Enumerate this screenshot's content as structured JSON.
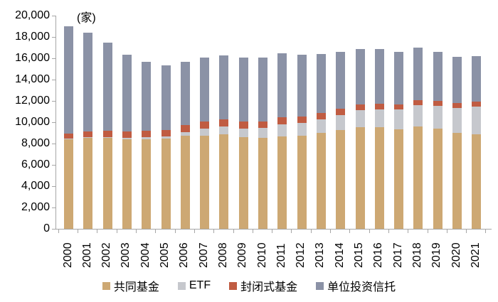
{
  "unit_label": "(家)",
  "chart_data": {
    "type": "bar",
    "stacked": true,
    "grid": false,
    "legend_position": "bottom",
    "ylim": [
      0,
      20000
    ],
    "ytick_step": 2000,
    "ytick_labels": [
      "20,000",
      "18,000",
      "16,000",
      "14,000",
      "12,000",
      "10,000",
      "8,000",
      "6,000",
      "4,000",
      "2,000",
      "0"
    ],
    "categories": [
      "2000",
      "2001",
      "2002",
      "2003",
      "2004",
      "2005",
      "2006",
      "2007",
      "2008",
      "2009",
      "2010",
      "2011",
      "2012",
      "2013",
      "2014",
      "2015",
      "2016",
      "2017",
      "2018",
      "2019",
      "2020",
      "2021"
    ],
    "series": [
      {
        "key": "mutual-fund",
        "name": "共同基金",
        "color": "#CDA873",
        "values": [
          8370,
          8518,
          8511,
          8426,
          8419,
          8451,
          8726,
          8752,
          8888,
          8612,
          8544,
          8673,
          8744,
          8972,
          9258,
          9517,
          9511,
          9356,
          9599,
          9414,
          9027,
          8887
        ]
      },
      {
        "key": "etf",
        "name": "ETF",
        "color": "#C6C8CD",
        "values": [
          80,
          102,
          113,
          119,
          152,
          204,
          359,
          629,
          728,
          797,
          923,
          1134,
          1194,
          1294,
          1411,
          1594,
          1716,
          1832,
          1988,
          2096,
          2296,
          2570
        ]
      },
      {
        "key": "closed-end-fund",
        "name": "封闭式基金",
        "color": "#C05C42",
        "values": [
          482,
          492,
          545,
          584,
          619,
          635,
          647,
          663,
          642,
          627,
          624,
          632,
          602,
          599,
          568,
          558,
          530,
          509,
          506,
          500,
          494,
          461
        ]
      },
      {
        "key": "unit-investment-trust",
        "name": "单位投资信托",
        "color": "#8B92A6",
        "values": [
          10072,
          9295,
          8303,
          7233,
          6499,
          6019,
          5907,
          6030,
          5984,
          6049,
          5971,
          6022,
          5787,
          5552,
          5381,
          5188,
          5103,
          4917,
          4917,
          4571,
          4310,
          4282
        ]
      }
    ]
  }
}
